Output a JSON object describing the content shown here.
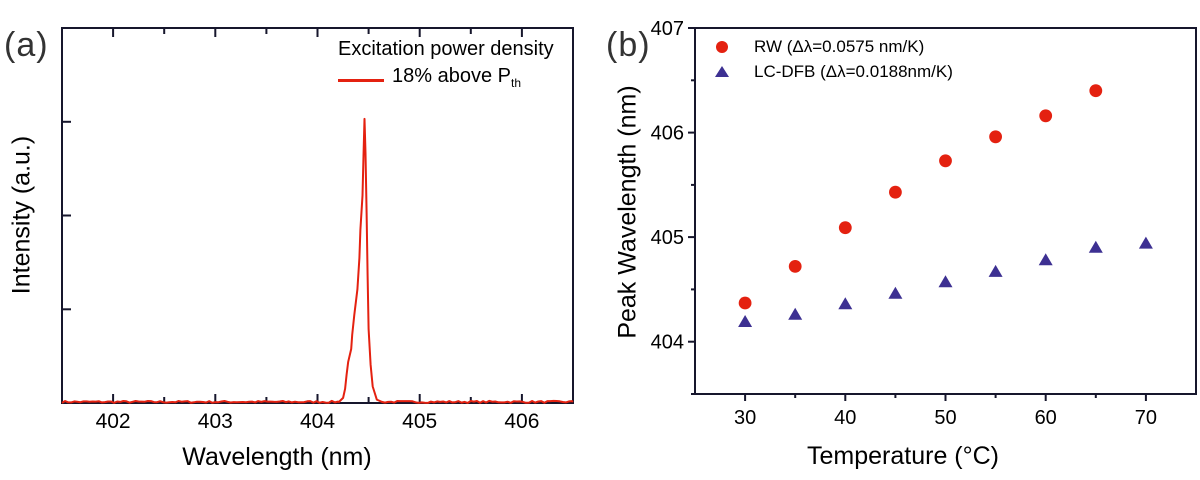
{
  "colors": {
    "red": "#e42110",
    "blue": "#3d3092",
    "frame": "#16162c",
    "text": "#000000",
    "panel_label": "#333333"
  },
  "chart_data": [
    {
      "id": "a",
      "type": "line",
      "panel_label": "(a)",
      "xlabel": "Wavelength (nm)",
      "ylabel": "Intensity (a.u.)",
      "xlim": [
        401.5,
        406.5
      ],
      "ylim": [
        0,
        1.32
      ],
      "xticks_major": [
        402,
        403,
        404,
        405,
        406
      ],
      "xticks_minor": [
        402.5,
        403.5,
        404.5,
        405.5
      ],
      "ytick_fracs_unlabeled": [
        0.25,
        0.5,
        0.75
      ],
      "grid": "off",
      "line_color": "#e42110",
      "legend_title": "Excitation power density",
      "legend_label": "18% above P",
      "legend_label_sub": "th",
      "peak_center_nm": 404.46,
      "baseline_level": 0.004,
      "spectrum": [
        [
          404.21,
          0.004
        ],
        [
          404.25,
          0.018
        ],
        [
          404.27,
          0.05
        ],
        [
          404.285,
          0.1
        ],
        [
          404.3,
          0.145
        ],
        [
          404.33,
          0.19
        ],
        [
          404.34,
          0.24
        ],
        [
          404.36,
          0.31
        ],
        [
          404.39,
          0.4
        ],
        [
          404.41,
          0.51
        ],
        [
          404.42,
          0.61
        ],
        [
          404.44,
          0.73
        ],
        [
          404.45,
          0.87
        ],
        [
          404.46,
          1.0
        ],
        [
          404.47,
          0.88
        ],
        [
          404.48,
          0.67
        ],
        [
          404.49,
          0.45
        ],
        [
          404.5,
          0.26
        ],
        [
          404.52,
          0.135
        ],
        [
          404.54,
          0.058
        ],
        [
          404.58,
          0.012
        ],
        [
          404.63,
          0.004
        ]
      ]
    },
    {
      "id": "b",
      "type": "scatter",
      "panel_label": "(b)",
      "xlabel": "Temperature (°C)",
      "ylabel": "Peak Wavelength (nm)",
      "xlim": [
        25,
        75
      ],
      "ylim": [
        403.5,
        407
      ],
      "xticks_major": [
        30,
        40,
        50,
        60,
        70
      ],
      "xticks_minor": [
        35,
        45,
        55,
        65
      ],
      "yticks_major": [
        404,
        405,
        406,
        407
      ],
      "yticks_minor": [
        403.5,
        404.5,
        405.5,
        406.5
      ],
      "grid": "off",
      "legend_position": "top-left",
      "series": [
        {
          "name": "RW (Δλ=0.0575 nm/K)",
          "marker": "circle",
          "color": "#e42110",
          "x": [
            30,
            35,
            40,
            45,
            50,
            55,
            60,
            65
          ],
          "y": [
            404.37,
            404.72,
            405.09,
            405.43,
            405.73,
            405.96,
            406.16,
            406.4
          ]
        },
        {
          "name": "LC-DFB (Δλ=0.0188nm/K)",
          "marker": "triangle",
          "color": "#3d3092",
          "x": [
            30,
            35,
            40,
            45,
            50,
            55,
            60,
            65,
            70
          ],
          "y": [
            404.19,
            404.26,
            404.36,
            404.46,
            404.57,
            404.67,
            404.78,
            404.9,
            404.94
          ]
        }
      ]
    }
  ]
}
